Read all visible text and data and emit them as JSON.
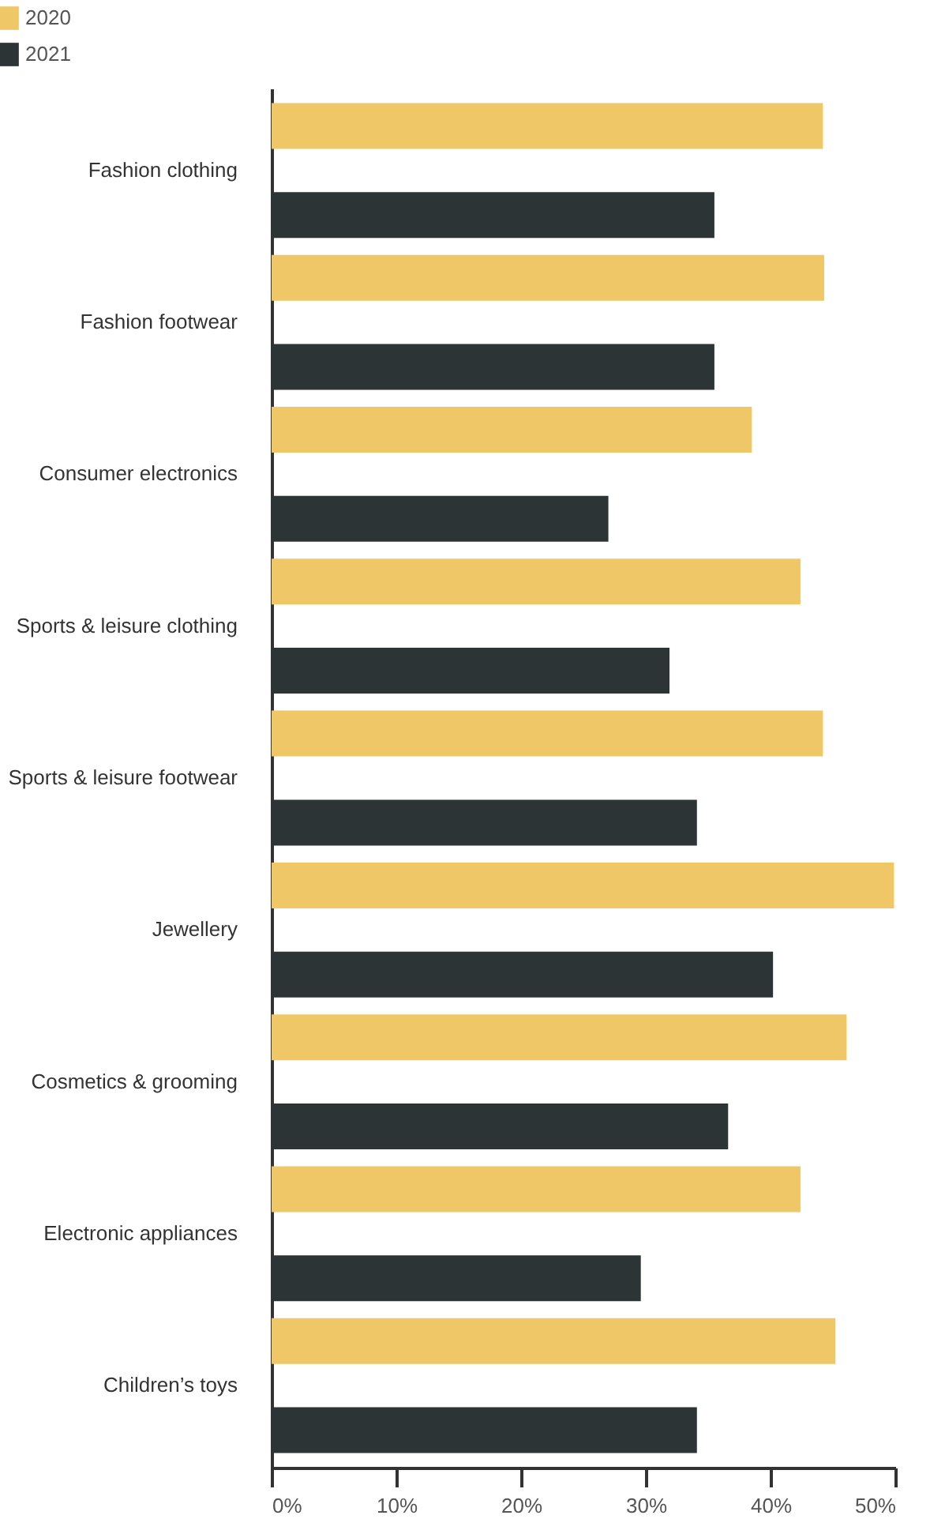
{
  "chart_data": {
    "type": "bar",
    "orientation": "horizontal",
    "legend": "top left",
    "categories": [
      "Fashion clothing",
      "Fashion footwear",
      "Consumer electronics",
      "Sports & leisure clothing",
      "Sports & leisure footwear",
      "Jewellery",
      "Cosmetics & grooming",
      "Electronic appliances",
      "Children’s toys"
    ],
    "series": [
      {
        "name": "2020",
        "color": "#f0c767",
        "values": [
          44.2,
          44.3,
          38.5,
          42.4,
          44.2,
          49.9,
          46.1,
          42.4,
          45.2
        ]
      },
      {
        "name": "2021",
        "color": "#2d3436",
        "values": [
          35.5,
          35.5,
          27.0,
          31.9,
          34.1,
          40.2,
          36.6,
          29.6,
          34.1
        ]
      }
    ],
    "xlim": [
      0,
      50
    ],
    "xticks": [
      {
        "value": 0,
        "label": "0%"
      },
      {
        "value": 10,
        "label": "10%"
      },
      {
        "value": 20,
        "label": "20%"
      },
      {
        "value": 30,
        "label": "30%"
      },
      {
        "value": 40,
        "label": "40%"
      },
      {
        "value": 50,
        "label": "50%"
      }
    ]
  }
}
